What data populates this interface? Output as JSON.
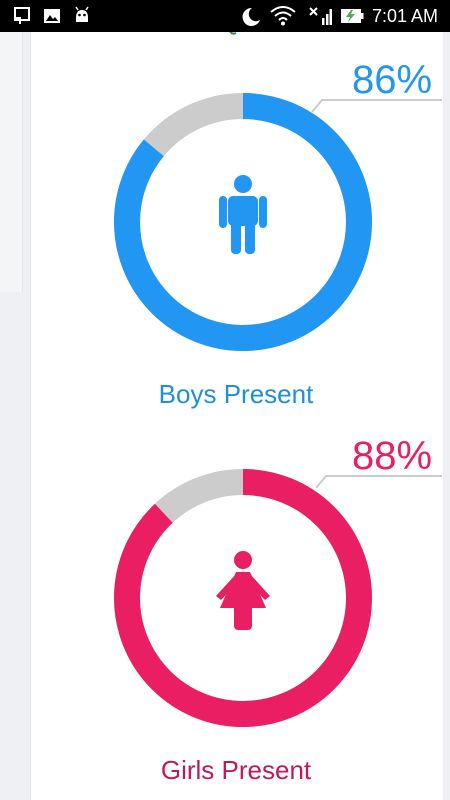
{
  "status_bar": {
    "time": "7:01 AM",
    "icons": [
      "screen-cast-icon",
      "image-icon",
      "android-icon",
      "moon-icon",
      "wifi-icon",
      "signal-off-icon",
      "battery-charging-icon"
    ]
  },
  "boys": {
    "percent": 86,
    "percent_label": "86%",
    "caption": "Boys Present",
    "color": "#2196f3",
    "icon": "boy-icon"
  },
  "girls": {
    "percent": 88,
    "percent_label": "88%",
    "caption": "Girls Present",
    "color": "#e91e63",
    "icon": "girl-icon"
  },
  "remainder_color": "#cccccc",
  "leader_line_color": "#cccccc"
}
